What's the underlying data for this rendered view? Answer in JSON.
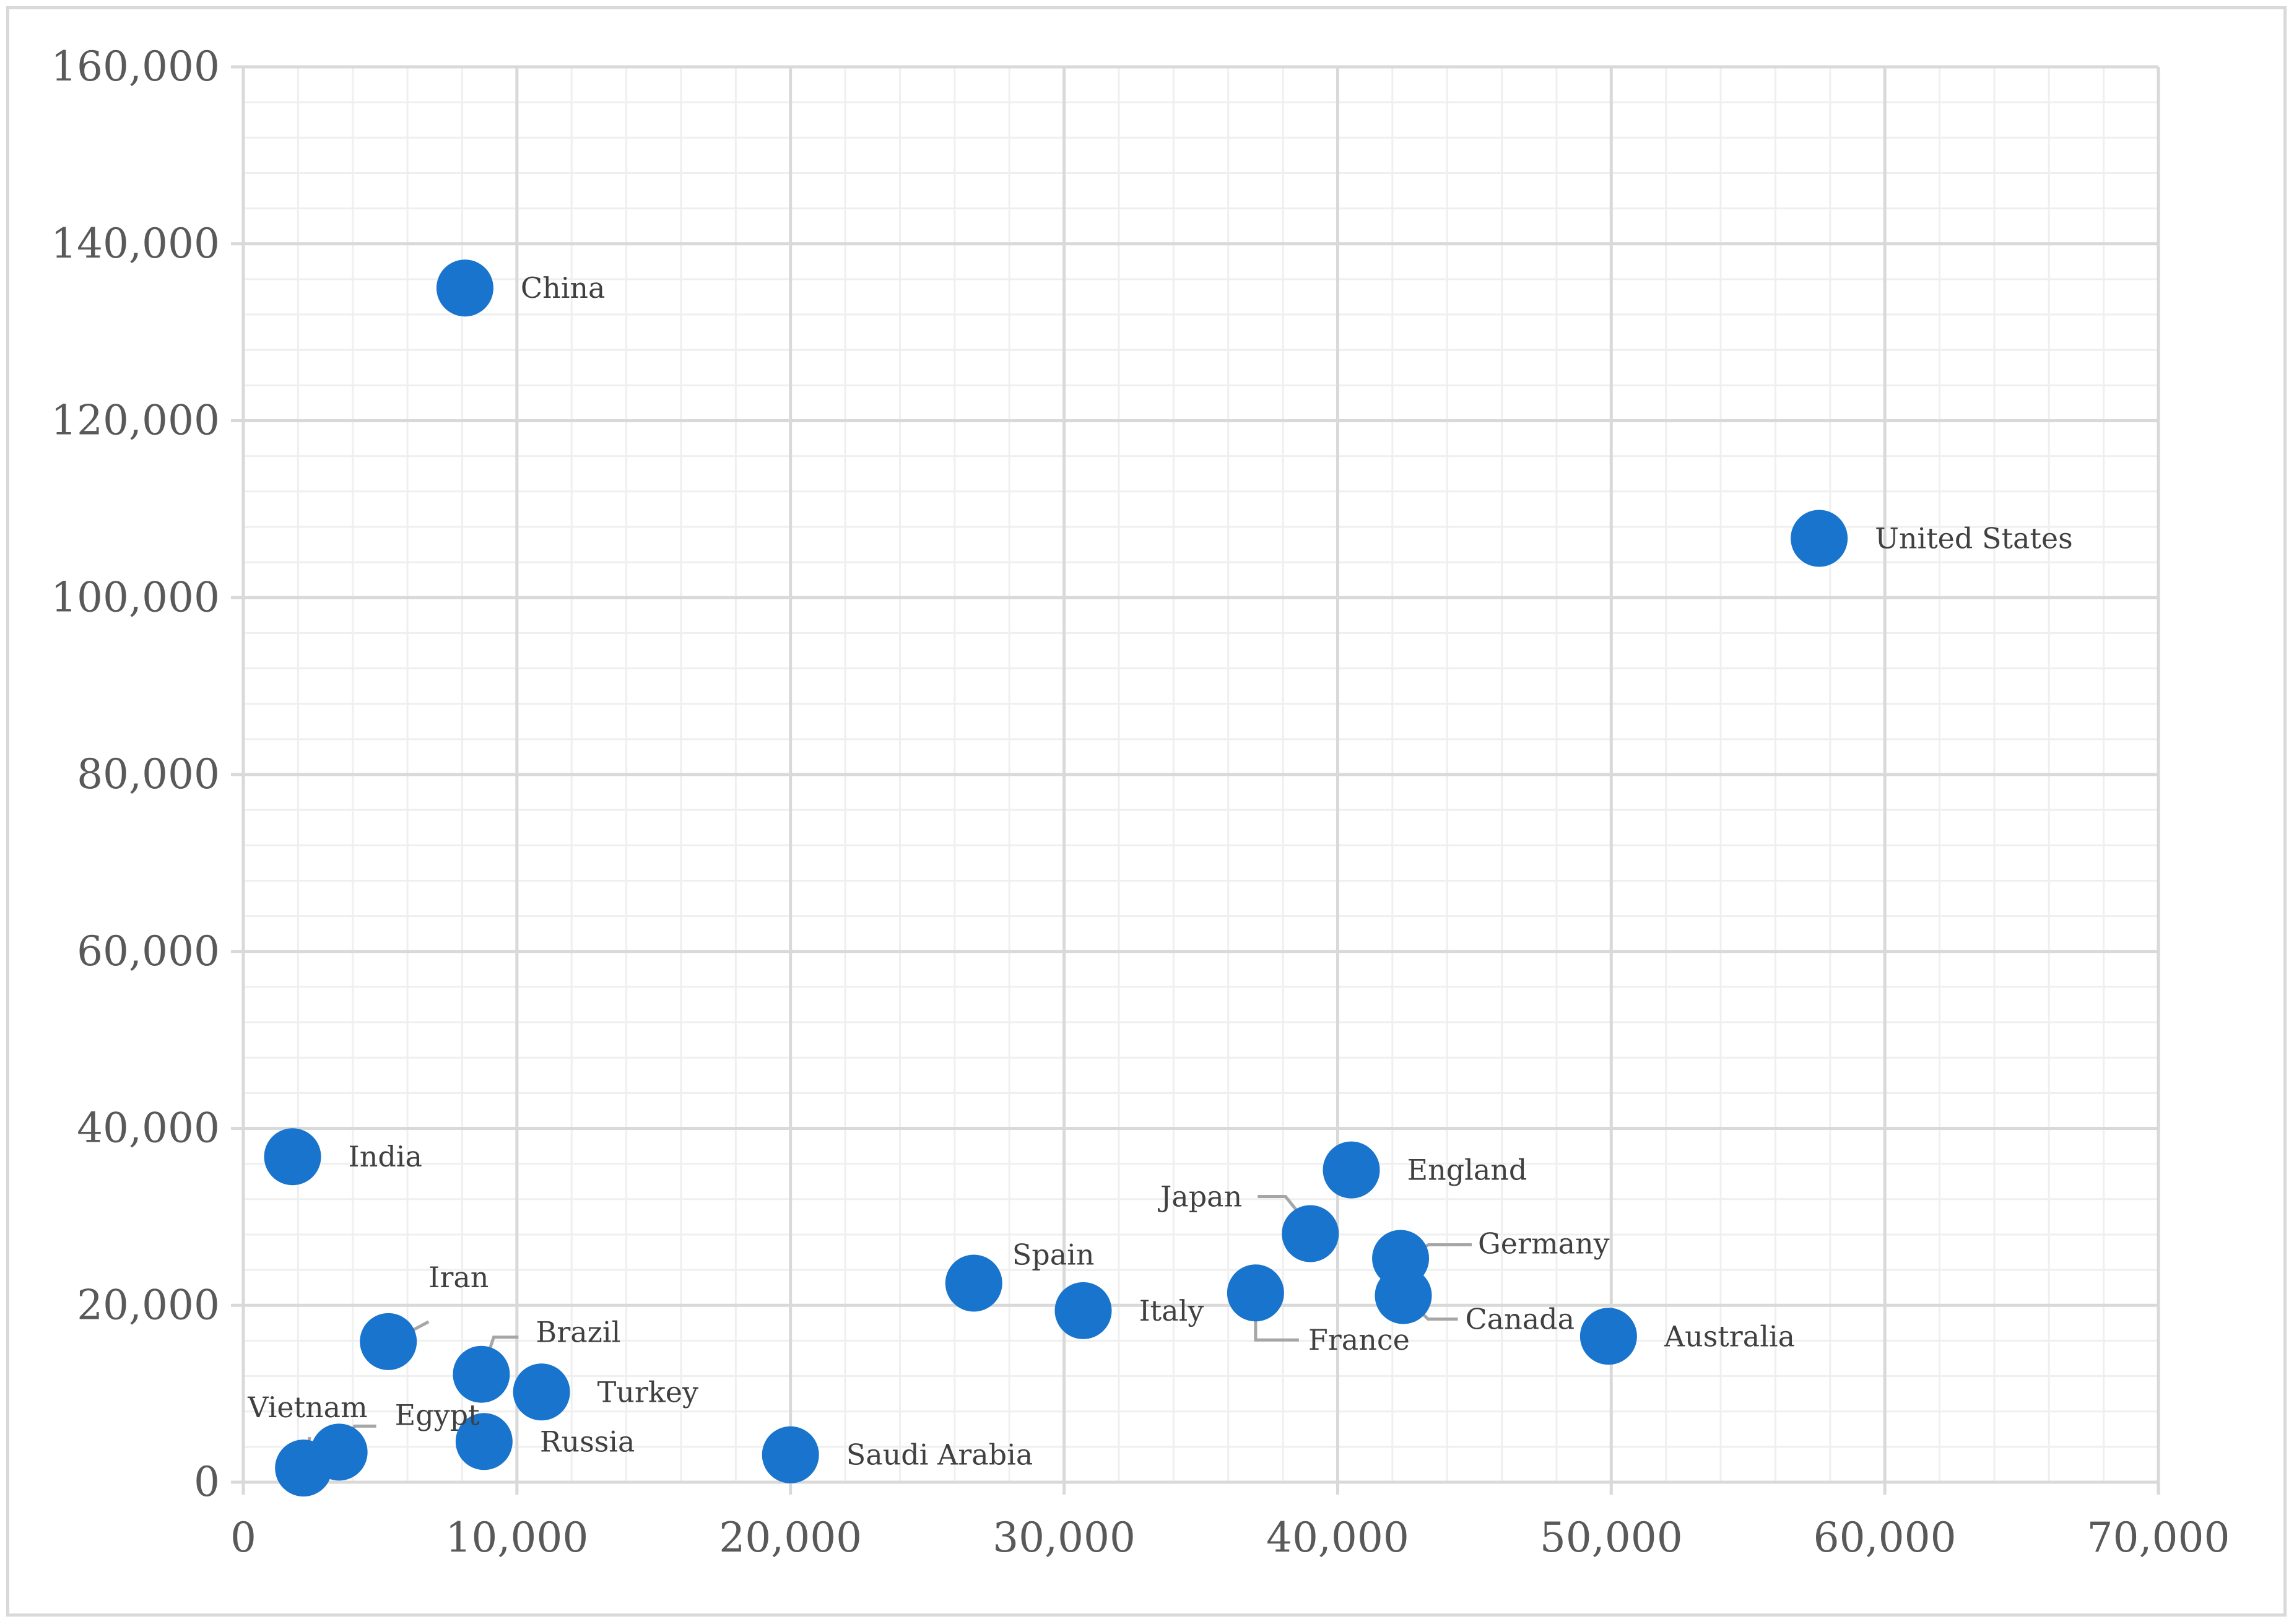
{
  "chart_data": {
    "type": "scatter",
    "title": "",
    "xlabel": "",
    "ylabel": "",
    "xlim": [
      0,
      70000
    ],
    "ylim": [
      0,
      160000
    ],
    "x_ticks": [
      "0",
      "10,000",
      "20,000",
      "30,000",
      "40,000",
      "50,000",
      "60,000",
      "70,000"
    ],
    "y_ticks": [
      "0",
      "20,000",
      "40,000",
      "60,000",
      "80,000",
      "100,000",
      "120,000",
      "140,000",
      "160,000"
    ],
    "grid": true,
    "marker_color": "#1874cd",
    "points": [
      {
        "label": "China",
        "x": 8100,
        "y": 135000
      },
      {
        "label": "United States",
        "x": 57600,
        "y": 106700
      },
      {
        "label": "India",
        "x": 1800,
        "y": 36800
      },
      {
        "label": "England",
        "x": 40500,
        "y": 35300
      },
      {
        "label": "Japan",
        "x": 39000,
        "y": 28100
      },
      {
        "label": "Germany",
        "x": 42300,
        "y": 25300
      },
      {
        "label": "Spain",
        "x": 26700,
        "y": 22500
      },
      {
        "label": "France",
        "x": 37000,
        "y": 21400
      },
      {
        "label": "Canada",
        "x": 42400,
        "y": 21100
      },
      {
        "label": "Italy",
        "x": 30700,
        "y": 19400
      },
      {
        "label": "Australia",
        "x": 49900,
        "y": 16500
      },
      {
        "label": "Iran",
        "x": 5300,
        "y": 15900
      },
      {
        "label": "Brazil",
        "x": 8700,
        "y": 12200
      },
      {
        "label": "Turkey",
        "x": 10900,
        "y": 10200
      },
      {
        "label": "Russia",
        "x": 8800,
        "y": 4600
      },
      {
        "label": "Egypt",
        "x": 3500,
        "y": 3400
      },
      {
        "label": "Saudi Arabia",
        "x": 20000,
        "y": 3100
      },
      {
        "label": "Vietnam",
        "x": 2200,
        "y": 1600
      }
    ]
  }
}
